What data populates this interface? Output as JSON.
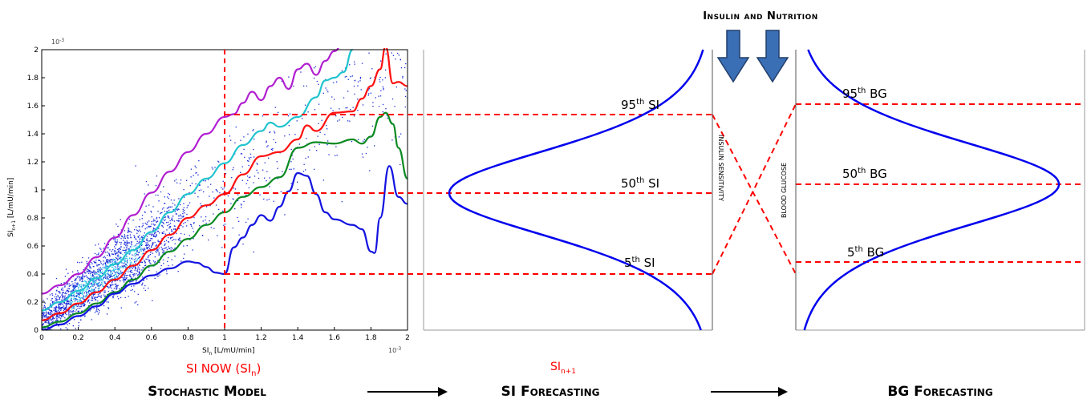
{
  "colors": {
    "axis": "#000000",
    "forecast": "#ff0000",
    "distribution": "#0000ee",
    "arrow_fill": "#3a6fb6",
    "arrow_stroke": "#223f6a",
    "caption": "#000000",
    "highlight": "#ff0000",
    "scatter": "#1a2bd8",
    "scatter_dense": "#2ec4e8"
  },
  "top_label": "Insulin and Nutrition",
  "captions": {
    "stochastic_model": "Stochastic Model",
    "si_forecasting": "SI Forecasting",
    "bg_forecasting": "BG Forecasting"
  },
  "highlight_labels": {
    "si_now": "SI NOW (SI",
    "si_now_sub": "n",
    "si_now_close": ")",
    "si_next": "SI",
    "si_next_sub": "n+1"
  },
  "si_labels": {
    "p95": "95",
    "p50": "50",
    "p5": "5",
    "suffix": "SI",
    "ordinal_th": "th"
  },
  "bg_labels": {
    "p95": "95",
    "p50": "50",
    "p5": "5",
    "suffix": "BG",
    "ordinal_th": "th"
  },
  "vertical_labels": {
    "insulin_sensitivity": "INSULIN SENSITIVITY",
    "blood_glucose": "BLOOD GLUCOSE"
  },
  "chart_data": {
    "type": "scatter",
    "xlabel_main": "SI",
    "xlabel_sub": "n",
    "xlabel_rest": " [L/mU/min]",
    "ylabel_main": "SI",
    "ylabel_sub": "n+1",
    "ylabel_rest": " [L/mU/min]",
    "x_exponent": "10",
    "x_exponent_power": "-3",
    "y_exponent": "10",
    "y_exponent_power": "-3",
    "xlim": [
      0,
      2
    ],
    "ylim": [
      0,
      2
    ],
    "x_ticks": [
      "0",
      "0.2",
      "0.4",
      "0.6",
      "0.8",
      "1",
      "1.2",
      "1.4",
      "1.6",
      "1.8",
      "2"
    ],
    "y_ticks": [
      "0",
      "0.2",
      "0.4",
      "0.6",
      "0.8",
      "1",
      "1.2",
      "1.4",
      "1.6",
      "1.8",
      "2"
    ],
    "si_now_x": 1.0,
    "percentiles_at_si_now": {
      "p5": 0.4,
      "p50": 0.97,
      "p95": 1.52
    },
    "series": [
      {
        "color": "#b11fd0",
        "x": [
          0,
          0.1,
          0.2,
          0.3,
          0.4,
          0.5,
          0.6,
          0.7,
          0.8,
          0.9,
          1.0,
          1.05,
          1.1,
          1.15,
          1.2,
          1.25,
          1.3,
          1.35,
          1.4,
          1.45,
          1.5,
          1.55,
          1.6,
          1.65,
          1.7
        ],
        "y": [
          0.26,
          0.32,
          0.4,
          0.52,
          0.66,
          0.82,
          0.98,
          1.13,
          1.27,
          1.4,
          1.52,
          1.54,
          1.62,
          1.7,
          1.64,
          1.74,
          1.8,
          1.72,
          1.86,
          1.9,
          1.82,
          1.92,
          1.99,
          2.05,
          2.1
        ]
      },
      {
        "color": "#22c4cf",
        "x": [
          0,
          0.1,
          0.2,
          0.3,
          0.4,
          0.5,
          0.6,
          0.7,
          0.8,
          0.9,
          1.0,
          1.1,
          1.2,
          1.25,
          1.3,
          1.4,
          1.5,
          1.55,
          1.6,
          1.65,
          1.7
        ],
        "y": [
          0.14,
          0.2,
          0.28,
          0.37,
          0.47,
          0.57,
          0.7,
          0.84,
          0.97,
          1.08,
          1.19,
          1.32,
          1.42,
          1.48,
          1.45,
          1.52,
          1.66,
          1.78,
          1.8,
          1.84,
          2.0
        ]
      },
      {
        "color": "#ff1010",
        "x": [
          0,
          0.1,
          0.2,
          0.3,
          0.4,
          0.5,
          0.6,
          0.7,
          0.8,
          0.9,
          1.0,
          1.1,
          1.2,
          1.3,
          1.4,
          1.45,
          1.5,
          1.6,
          1.7,
          1.75,
          1.8,
          1.85,
          1.88,
          1.92,
          1.95,
          2.0
        ],
        "y": [
          0.07,
          0.12,
          0.19,
          0.27,
          0.36,
          0.46,
          0.57,
          0.68,
          0.8,
          0.89,
          0.97,
          1.11,
          1.24,
          1.27,
          1.36,
          1.46,
          1.42,
          1.55,
          1.56,
          1.65,
          1.74,
          1.86,
          2.02,
          1.76,
          1.77,
          1.74
        ]
      },
      {
        "color": "#0a8a22",
        "x": [
          0,
          0.1,
          0.2,
          0.3,
          0.4,
          0.5,
          0.6,
          0.7,
          0.8,
          0.9,
          1.0,
          1.1,
          1.2,
          1.3,
          1.4,
          1.5,
          1.6,
          1.7,
          1.75,
          1.8,
          1.85,
          1.88,
          1.92,
          1.95,
          2.0
        ],
        "y": [
          0.02,
          0.06,
          0.12,
          0.19,
          0.27,
          0.36,
          0.46,
          0.56,
          0.65,
          0.75,
          0.84,
          0.95,
          1.02,
          1.09,
          1.3,
          1.34,
          1.33,
          1.36,
          1.33,
          1.38,
          1.52,
          1.55,
          1.47,
          1.3,
          1.08
        ]
      },
      {
        "color": "#1414e0",
        "x": [
          0,
          0.1,
          0.2,
          0.3,
          0.4,
          0.5,
          0.6,
          0.7,
          0.8,
          0.85,
          0.9,
          0.95,
          1.0,
          1.05,
          1.1,
          1.15,
          1.2,
          1.25,
          1.3,
          1.35,
          1.4,
          1.45,
          1.5,
          1.55,
          1.6,
          1.7,
          1.75,
          1.8,
          1.82,
          1.85,
          1.9,
          1.95,
          2.0
        ],
        "y": [
          0.0,
          0.04,
          0.1,
          0.17,
          0.26,
          0.33,
          0.39,
          0.44,
          0.49,
          0.48,
          0.45,
          0.41,
          0.4,
          0.59,
          0.66,
          0.75,
          0.82,
          0.78,
          0.88,
          0.99,
          1.12,
          1.1,
          0.97,
          0.84,
          0.79,
          0.75,
          0.72,
          0.56,
          0.55,
          0.8,
          1.17,
          0.95,
          0.9
        ]
      }
    ]
  }
}
